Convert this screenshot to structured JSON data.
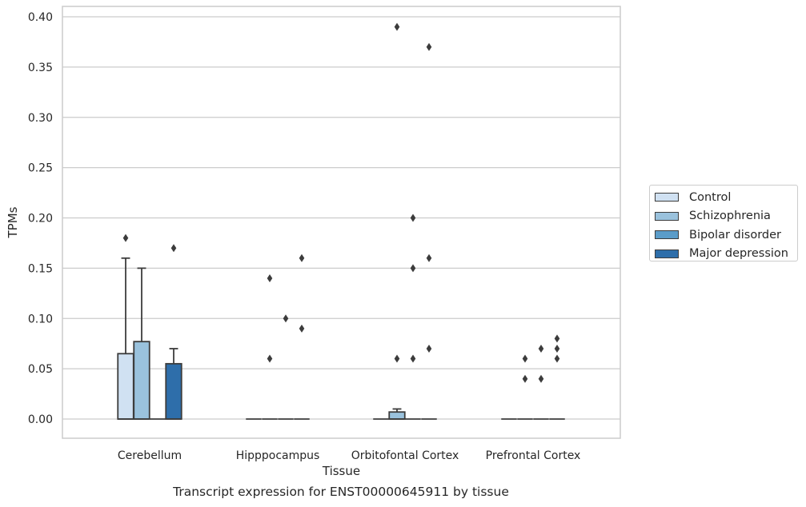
{
  "chart_data": {
    "type": "box",
    "xlabel": "Tissue",
    "ylabel": "TPMs",
    "ylim": [
      -0.02,
      0.41
    ],
    "yticks": [
      0.0,
      0.05,
      0.1,
      0.15,
      0.2,
      0.25,
      0.3,
      0.35,
      0.4
    ],
    "ytick_labels": [
      "0.00",
      "0.05",
      "0.10",
      "0.15",
      "0.20",
      "0.25",
      "0.30",
      "0.35",
      "0.40"
    ],
    "categories": [
      "Cerebellum",
      "Hipppocampus",
      "Orbitofontal Cortex",
      "Prefrontal Cortex"
    ],
    "grid": "horizontal",
    "legend_position": "right",
    "series": [
      {
        "name": "Control",
        "color": "#d0e1f2",
        "boxes": [
          {
            "q1": 0.0,
            "median": 0.0,
            "q3": 0.065,
            "whisker_low": 0.0,
            "whisker_high": 0.16,
            "outliers": [
              0.18
            ]
          },
          {
            "q1": 0.0,
            "median": 0.0,
            "q3": 0.0,
            "whisker_low": 0.0,
            "whisker_high": 0.0,
            "outliers": []
          },
          {
            "q1": 0.0,
            "median": 0.0,
            "q3": 0.0,
            "whisker_low": 0.0,
            "whisker_high": 0.0,
            "outliers": []
          },
          {
            "q1": 0.0,
            "median": 0.0,
            "q3": 0.0,
            "whisker_low": 0.0,
            "whisker_high": 0.0,
            "outliers": []
          }
        ]
      },
      {
        "name": "Schizophrenia",
        "color": "#9ac2dd",
        "boxes": [
          {
            "q1": 0.0,
            "median": 0.0,
            "q3": 0.077,
            "whisker_low": 0.0,
            "whisker_high": 0.15,
            "outliers": []
          },
          {
            "q1": 0.0,
            "median": 0.0,
            "q3": 0.0,
            "whisker_low": 0.0,
            "whisker_high": 0.0,
            "outliers": [
              0.06,
              0.14
            ]
          },
          {
            "q1": 0.0,
            "median": 0.0,
            "q3": 0.007,
            "whisker_low": 0.0,
            "whisker_high": 0.01,
            "outliers": [
              0.06,
              0.39
            ]
          },
          {
            "q1": 0.0,
            "median": 0.0,
            "q3": 0.0,
            "whisker_low": 0.0,
            "whisker_high": 0.0,
            "outliers": [
              0.04,
              0.06
            ]
          }
        ]
      },
      {
        "name": "Bipolar disorder",
        "color": "#5b9cc9",
        "boxes": [
          {
            "q1": 0.0,
            "median": 0.0,
            "q3": 0.0,
            "whisker_low": 0.0,
            "whisker_high": 0.0,
            "outliers": []
          },
          {
            "q1": 0.0,
            "median": 0.0,
            "q3": 0.0,
            "whisker_low": 0.0,
            "whisker_high": 0.0,
            "outliers": [
              0.1
            ]
          },
          {
            "q1": 0.0,
            "median": 0.0,
            "q3": 0.0,
            "whisker_low": 0.0,
            "whisker_high": 0.0,
            "outliers": [
              0.06,
              0.15,
              0.2
            ]
          },
          {
            "q1": 0.0,
            "median": 0.0,
            "q3": 0.0,
            "whisker_low": 0.0,
            "whisker_high": 0.0,
            "outliers": [
              0.04,
              0.07
            ]
          }
        ]
      },
      {
        "name": "Major depression",
        "color": "#2e6eaa",
        "boxes": [
          {
            "q1": 0.0,
            "median": 0.0,
            "q3": 0.055,
            "whisker_low": 0.0,
            "whisker_high": 0.07,
            "outliers": [
              0.17
            ]
          },
          {
            "q1": 0.0,
            "median": 0.0,
            "q3": 0.0,
            "whisker_low": 0.0,
            "whisker_high": 0.0,
            "outliers": [
              0.09,
              0.16
            ]
          },
          {
            "q1": 0.0,
            "median": 0.0,
            "q3": 0.0,
            "whisker_low": 0.0,
            "whisker_high": 0.0,
            "outliers": [
              0.07,
              0.16,
              0.37
            ]
          },
          {
            "q1": 0.0,
            "median": 0.0,
            "q3": 0.0,
            "whisker_low": 0.0,
            "whisker_high": 0.0,
            "outliers": [
              0.06,
              0.07,
              0.08
            ]
          }
        ]
      }
    ]
  },
  "caption": "Transcript expression for ENST00000645911 by tissue",
  "colors": {
    "grid": "#cccccc",
    "spine": "#cccccc",
    "edge": "#3c3c3c",
    "background": "#ffffff"
  }
}
